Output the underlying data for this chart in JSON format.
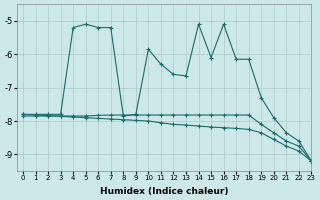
{
  "xlabel": "Humidex (Indice chaleur)",
  "ylabel": "",
  "xlim": [
    -0.5,
    23
  ],
  "ylim": [
    -9.5,
    -4.5
  ],
  "yticks": [
    -9,
    -8,
    -7,
    -6,
    -5
  ],
  "xticks": [
    0,
    1,
    2,
    3,
    4,
    5,
    6,
    7,
    8,
    9,
    10,
    11,
    12,
    13,
    14,
    15,
    16,
    17,
    18,
    19,
    20,
    21,
    22,
    23
  ],
  "background_color": "#cce8e8",
  "line_color": "#1a6b6b",
  "grid_color": "#b0c8c8",
  "series": [
    {
      "x": [
        0,
        1,
        2,
        3,
        4,
        5,
        6,
        7,
        8,
        9,
        10,
        11,
        12,
        13,
        14,
        15,
        16,
        17,
        18,
        19,
        20,
        21,
        22,
        23
      ],
      "y": [
        -7.8,
        -7.8,
        -7.8,
        -7.8,
        -5.2,
        -5.1,
        -5.2,
        -5.2,
        -7.85,
        -7.8,
        -5.85,
        -6.3,
        -6.6,
        -6.65,
        -5.1,
        -6.1,
        -5.1,
        -6.15,
        -6.15,
        -7.3,
        -7.9,
        -8.35,
        -8.6,
        -9.2
      ],
      "marker": "+"
    },
    {
      "x": [
        0,
        1,
        2,
        3,
        4,
        5,
        6,
        7,
        8,
        9,
        10,
        11,
        12,
        13,
        14,
        15,
        16,
        17,
        18,
        19,
        20,
        21,
        22,
        23
      ],
      "y": [
        -7.8,
        -7.82,
        -7.84,
        -7.86,
        -7.88,
        -7.9,
        -7.92,
        -7.94,
        -7.96,
        -7.98,
        -8.0,
        -8.05,
        -8.1,
        -8.12,
        -8.15,
        -8.18,
        -8.2,
        -8.22,
        -8.25,
        -8.35,
        -8.55,
        -8.75,
        -8.9,
        -9.2
      ],
      "marker": "+"
    },
    {
      "x": [
        0,
        1,
        2,
        3,
        4,
        5,
        6,
        7,
        8,
        9,
        10,
        11,
        12,
        13,
        14,
        15,
        16,
        17,
        18,
        19,
        20,
        21,
        22,
        23
      ],
      "y": [
        -7.85,
        -7.85,
        -7.85,
        -7.85,
        -7.85,
        -7.85,
        -7.83,
        -7.82,
        -7.82,
        -7.82,
        -7.82,
        -7.82,
        -7.82,
        -7.82,
        -7.82,
        -7.82,
        -7.82,
        -7.82,
        -7.82,
        -8.1,
        -8.35,
        -8.6,
        -8.75,
        -9.2
      ],
      "marker": "+"
    }
  ]
}
